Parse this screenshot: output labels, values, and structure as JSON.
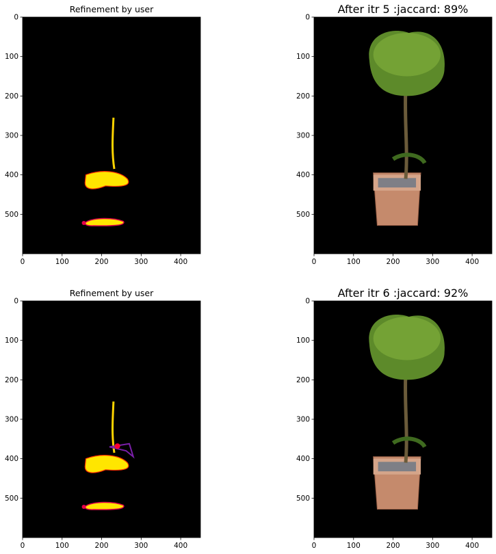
{
  "panels": [
    {
      "title": "Refinement by user",
      "kind": "mask",
      "iteration": 5
    },
    {
      "title": "After itr 5 :jaccard: 89%",
      "kind": "image",
      "iteration": 5
    },
    {
      "title": "Refinement by user",
      "kind": "mask",
      "iteration": 6
    },
    {
      "title": "After itr 6 :jaccard: 92%",
      "kind": "image",
      "iteration": 6
    }
  ],
  "chart_data": [
    {
      "type": "image",
      "title": "Refinement by user",
      "x_ticks": [
        0,
        100,
        200,
        300,
        400
      ],
      "y_ticks": [
        0,
        100,
        200,
        300,
        400,
        500
      ],
      "xlim": [
        0,
        450
      ],
      "ylim": [
        600,
        0
      ],
      "content": "user refinement scribbles (yellow/red/purple) on black"
    },
    {
      "type": "image",
      "title": "After itr 5 :jaccard: 89%",
      "x_ticks": [
        0,
        100,
        200,
        300,
        400
      ],
      "y_ticks": [
        0,
        100,
        200,
        300,
        400,
        500
      ],
      "xlim": [
        0,
        450
      ],
      "ylim": [
        600,
        0
      ],
      "jaccard_percent": 89,
      "content": "segmented potted topiary tree on black"
    },
    {
      "type": "image",
      "title": "Refinement by user",
      "x_ticks": [
        0,
        100,
        200,
        300,
        400
      ],
      "y_ticks": [
        0,
        100,
        200,
        300,
        400,
        500
      ],
      "xlim": [
        0,
        450
      ],
      "ylim": [
        600,
        0
      ],
      "content": "user refinement scribbles (yellow/red/purple) on black"
    },
    {
      "type": "image",
      "title": "After itr 6 :jaccard: 92%",
      "x_ticks": [
        0,
        100,
        200,
        300,
        400
      ],
      "y_ticks": [
        0,
        100,
        200,
        300,
        400,
        500
      ],
      "xlim": [
        0,
        450
      ],
      "ylim": [
        600,
        0
      ],
      "jaccard_percent": 92,
      "content": "segmented potted topiary tree on black"
    }
  ]
}
